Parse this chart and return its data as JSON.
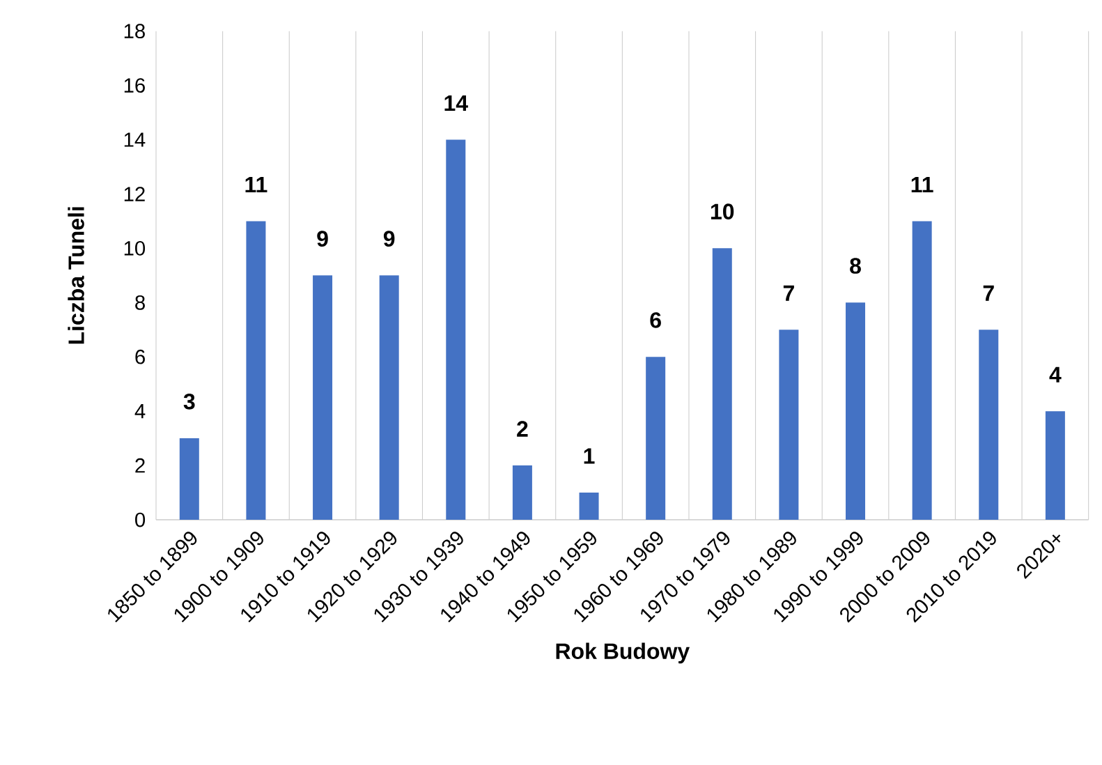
{
  "chart_data": {
    "type": "bar",
    "xlabel": "Rok Budowy",
    "ylabel": "Liczba Tuneli",
    "categories": [
      "1850 to 1899",
      "1900 to 1909",
      "1910 to 1919",
      "1920 to 1929",
      "1930 to 1939",
      "1940 to 1949",
      "1950 to 1959",
      "1960 to 1969",
      "1970 to 1979",
      "1980 to 1989",
      "1990 to 1999",
      "2000 to 2009",
      "2010 to 2019",
      "2020+"
    ],
    "values": [
      3,
      11,
      9,
      9,
      14,
      2,
      1,
      6,
      10,
      7,
      8,
      11,
      7,
      4
    ],
    "color": "#4472c4",
    "ylim": [
      0,
      18
    ],
    "yticks": [
      0,
      2,
      4,
      6,
      8,
      10,
      12,
      14,
      16,
      18
    ],
    "grid": "x",
    "data_labels": true
  }
}
